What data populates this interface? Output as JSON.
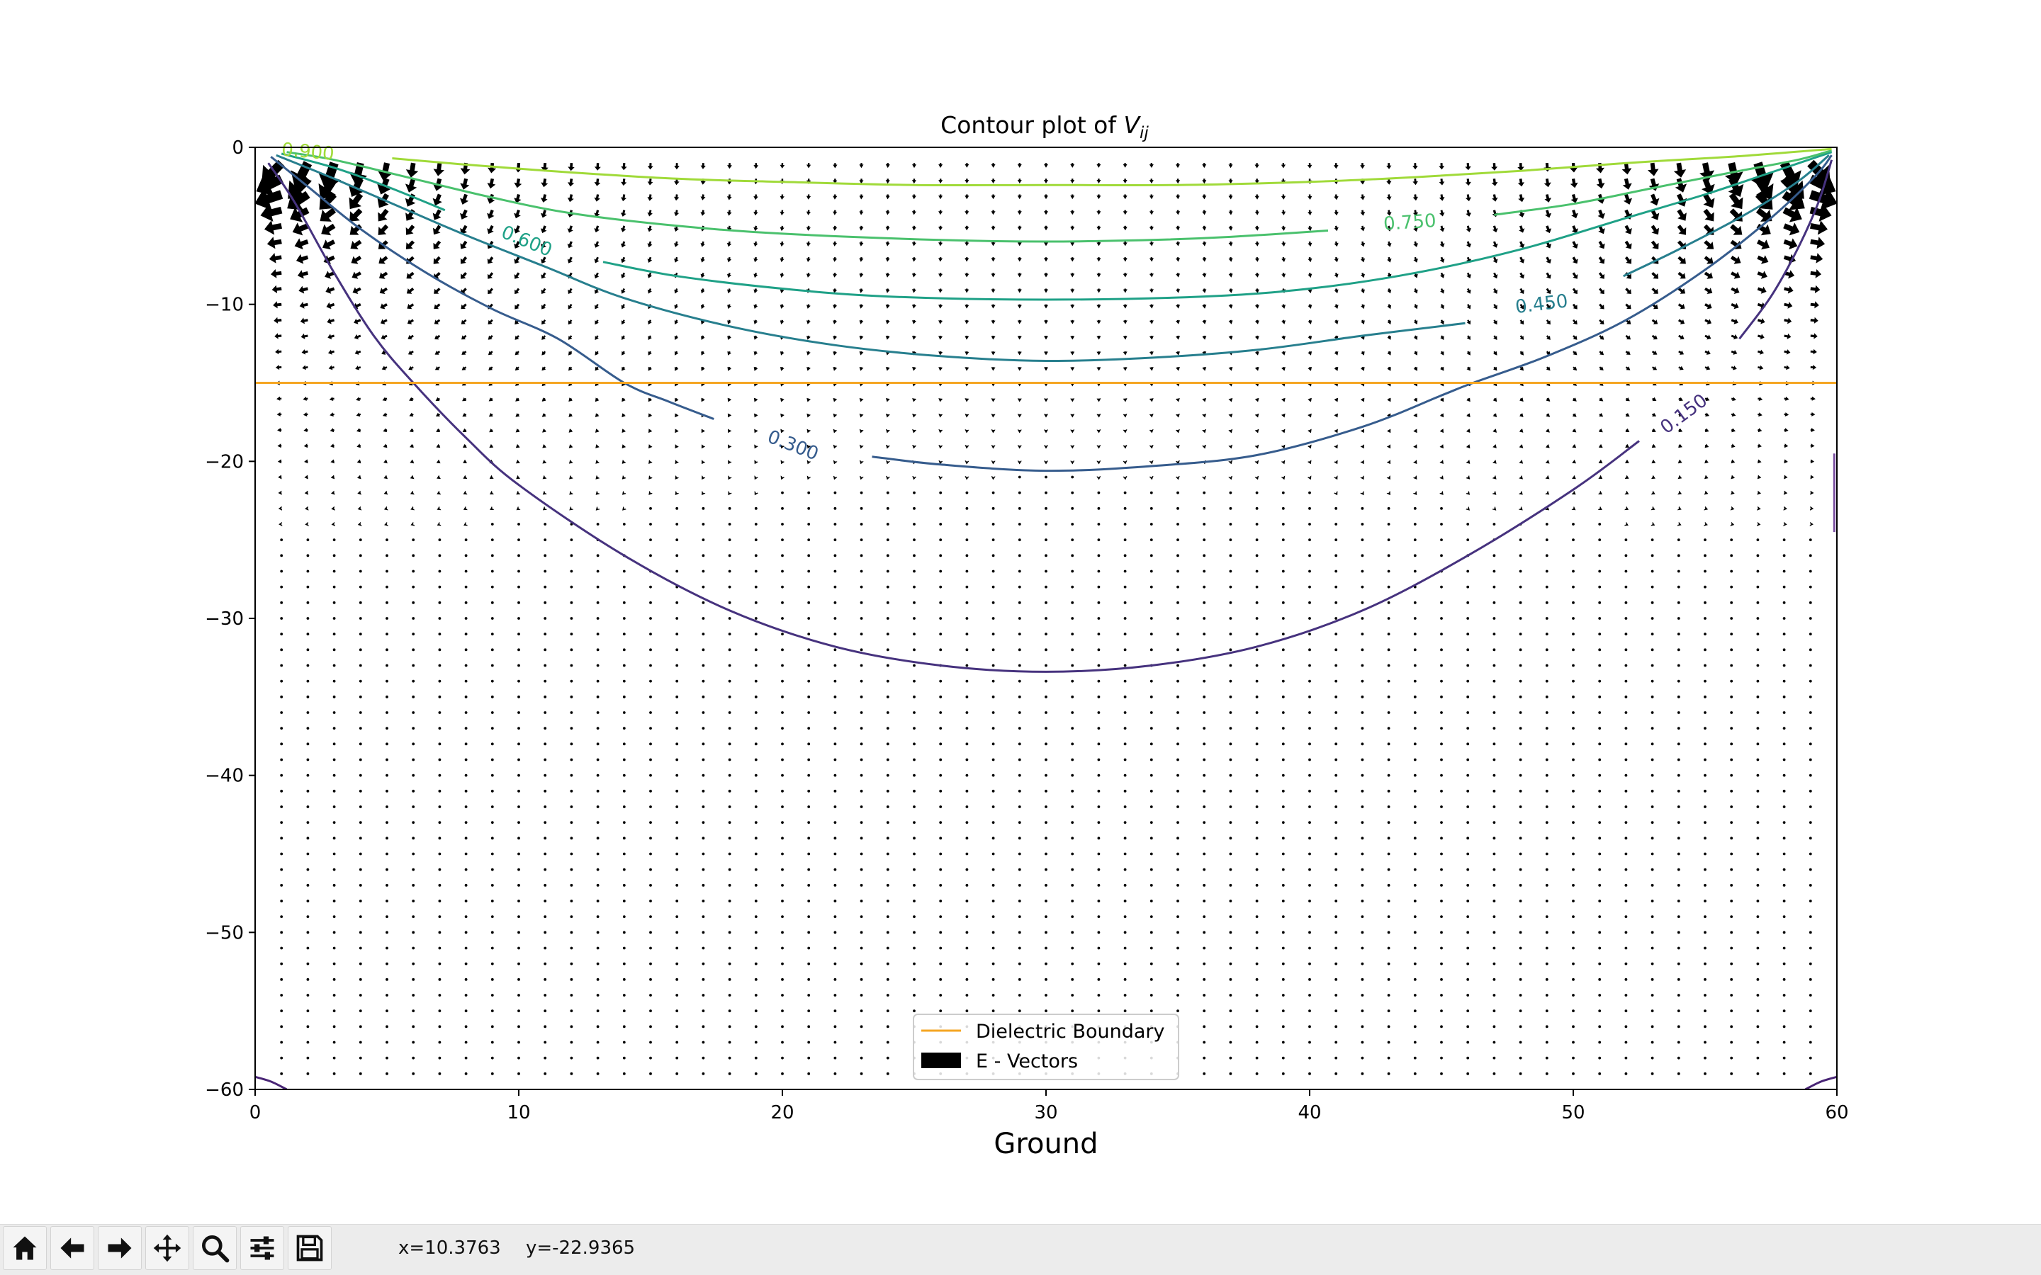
{
  "chart_data": {
    "type": "contour",
    "title_main": "Contour plot of ",
    "title_symbol": "V",
    "title_subscript": "ij",
    "xlabel": "Ground",
    "ylabel": "",
    "xlim": [
      0,
      60
    ],
    "ylim": [
      -60,
      0
    ],
    "x_ticks": [
      0,
      10,
      20,
      30,
      40,
      50,
      60
    ],
    "y_ticks": [
      0,
      -10,
      -20,
      -30,
      -40,
      -50,
      -60
    ],
    "x_tick_labels": [
      "0",
      "10",
      "20",
      "30",
      "40",
      "50",
      "60"
    ],
    "y_tick_labels": [
      "0",
      "−10",
      "−20",
      "−30",
      "−40",
      "−50",
      "−60"
    ],
    "grid": false,
    "legend_position": "lower center",
    "legend": [
      {
        "label": "Dielectric Boundary",
        "kind": "line",
        "color": "#f5a623"
      },
      {
        "label": "E - Vectors",
        "kind": "patch",
        "color": "#000000"
      }
    ],
    "dielectric_boundary_y": -15,
    "contour_levels": [
      {
        "level": 0.15,
        "color": "#46327e",
        "label": "0.150",
        "label_at": [
          54.2,
          -17.0
        ],
        "points": [
          [
            0.5,
            -1.0
          ],
          [
            1.5,
            -3.5
          ],
          [
            3.0,
            -8.0
          ],
          [
            4.5,
            -12.0
          ],
          [
            6,
            -15
          ],
          [
            8,
            -18.5
          ],
          [
            10,
            -21.5
          ],
          [
            14,
            -26.0
          ],
          [
            18,
            -29.5
          ],
          [
            22,
            -31.8
          ],
          [
            26,
            -33.0
          ],
          [
            30,
            -33.4
          ],
          [
            34,
            -33.0
          ],
          [
            38,
            -31.8
          ],
          [
            42,
            -29.5
          ],
          [
            46,
            -26.0
          ],
          [
            50,
            -21.8
          ],
          [
            52.5,
            -18.7
          ]
        ]
      },
      {
        "level": 0.15,
        "color": "#46327e",
        "label": "",
        "points": [
          [
            56.3,
            -12.2
          ],
          [
            57.5,
            -9.5
          ],
          [
            58.5,
            -6.5
          ],
          [
            59.3,
            -3.5
          ],
          [
            59.8,
            -0.8
          ]
        ]
      },
      {
        "level": 0.3,
        "color": "#365c8d",
        "label": "0.300",
        "label_at": [
          20.4,
          -19.0
        ],
        "points": [
          [
            0.6,
            -0.6
          ],
          [
            2.0,
            -2.5
          ],
          [
            4.0,
            -5.2
          ],
          [
            6.5,
            -8.0
          ],
          [
            9,
            -10.3
          ],
          [
            11.5,
            -12.2
          ],
          [
            14,
            -15.0
          ],
          [
            15.7,
            -16.2
          ],
          [
            17.4,
            -17.3
          ]
        ]
      },
      {
        "level": 0.3,
        "color": "#365c8d",
        "label": "",
        "points": [
          [
            23.4,
            -19.7
          ],
          [
            26,
            -20.2
          ],
          [
            30,
            -20.6
          ],
          [
            34,
            -20.3
          ],
          [
            38,
            -19.6
          ],
          [
            42,
            -17.8
          ],
          [
            45,
            -15.8
          ],
          [
            46.2,
            -15.0
          ],
          [
            49,
            -13.3
          ],
          [
            52,
            -11.0
          ],
          [
            55,
            -7.8
          ],
          [
            57.5,
            -4.5
          ],
          [
            59.2,
            -1.8
          ],
          [
            59.8,
            -0.5
          ]
        ]
      },
      {
        "level": 0.45,
        "color": "#277f8e",
        "label": "0.450",
        "label_at": [
          48.8,
          -10.0
        ],
        "points": [
          [
            0.8,
            -0.5
          ],
          [
            3,
            -2.0
          ],
          [
            5.5,
            -3.8
          ],
          [
            8,
            -5.6
          ],
          [
            11,
            -7.6
          ],
          [
            14,
            -9.6
          ],
          [
            18,
            -11.4
          ],
          [
            22,
            -12.6
          ],
          [
            26,
            -13.3
          ],
          [
            30,
            -13.6
          ],
          [
            34,
            -13.4
          ],
          [
            38,
            -12.9
          ],
          [
            42,
            -12.0
          ],
          [
            45.9,
            -11.2
          ]
        ]
      },
      {
        "level": 0.45,
        "color": "#277f8e",
        "label": "",
        "points": [
          [
            51.9,
            -8.2
          ],
          [
            54,
            -6.5
          ],
          [
            56.5,
            -4.3
          ],
          [
            58.5,
            -2.2
          ],
          [
            59.7,
            -0.5
          ]
        ]
      },
      {
        "level": 0.6,
        "color": "#1fa187",
        "label": "0.600",
        "label_at": [
          10.3,
          -6.0
        ],
        "points": [
          [
            1.0,
            -0.4
          ],
          [
            3,
            -1.3
          ],
          [
            5,
            -2.5
          ],
          [
            7.2,
            -4.0
          ]
        ]
      },
      {
        "level": 0.6,
        "color": "#1fa187",
        "label": "",
        "points": [
          [
            13.2,
            -7.3
          ],
          [
            16,
            -8.2
          ],
          [
            20,
            -9.0
          ],
          [
            24,
            -9.5
          ],
          [
            30,
            -9.7
          ],
          [
            36,
            -9.5
          ],
          [
            40,
            -9.0
          ],
          [
            44,
            -8.0
          ],
          [
            48,
            -6.5
          ],
          [
            52,
            -4.5
          ],
          [
            55,
            -3.0
          ],
          [
            57.5,
            -1.6
          ],
          [
            59.8,
            -0.3
          ]
        ]
      },
      {
        "level": 0.75,
        "color": "#4ac16d",
        "label": "0.750",
        "label_at": [
          43.8,
          -4.8
        ],
        "points": [
          [
            1.2,
            -0.3
          ],
          [
            3,
            -0.8
          ],
          [
            6,
            -2.0
          ],
          [
            9,
            -3.2
          ],
          [
            12,
            -4.2
          ],
          [
            16,
            -5.0
          ],
          [
            20,
            -5.5
          ],
          [
            26,
            -5.9
          ],
          [
            30,
            -6.0
          ],
          [
            34,
            -5.9
          ],
          [
            37,
            -5.7
          ],
          [
            40.7,
            -5.3
          ]
        ]
      },
      {
        "level": 0.75,
        "color": "#4ac16d",
        "label": "",
        "points": [
          [
            47,
            -4.3
          ],
          [
            50,
            -3.6
          ],
          [
            53,
            -2.6
          ],
          [
            56,
            -1.6
          ],
          [
            58.5,
            -0.8
          ],
          [
            59.8,
            -0.2
          ]
        ]
      },
      {
        "level": 0.9,
        "color": "#a0da39",
        "label": "0.900",
        "label_at": [
          2.0,
          -0.3
        ],
        "points": [
          [
            5.2,
            -0.7
          ],
          [
            8,
            -1.1
          ],
          [
            12,
            -1.6
          ],
          [
            16,
            -2.0
          ],
          [
            20,
            -2.2
          ],
          [
            25,
            -2.4
          ],
          [
            30,
            -2.4
          ],
          [
            35,
            -2.4
          ],
          [
            40,
            -2.2
          ],
          [
            44,
            -1.9
          ],
          [
            48,
            -1.5
          ],
          [
            52,
            -1.0
          ],
          [
            56,
            -0.6
          ],
          [
            59.8,
            -0.1
          ]
        ]
      }
    ],
    "corner_contours": [
      {
        "color": "#482475",
        "points": [
          [
            0,
            -59.2
          ],
          [
            0.6,
            -59.5
          ],
          [
            1.2,
            -60
          ]
        ]
      },
      {
        "color": "#482475",
        "points": [
          [
            58.8,
            -60
          ],
          [
            59.4,
            -59.5
          ],
          [
            60,
            -59.2
          ]
        ]
      },
      {
        "color": "#7a4fa0",
        "points": [
          [
            59.9,
            -19.5
          ],
          [
            59.9,
            -22.0
          ],
          [
            59.9,
            -24.5
          ]
        ]
      }
    ],
    "field_vectors": {
      "description": "E-field quiver, field of a strip at the top with grounded sides",
      "x_start": 1,
      "x_step": 1,
      "x_end": 59,
      "y_start": -1,
      "y_step": -1,
      "y_end": -59
    }
  },
  "toolbar": {
    "buttons": [
      {
        "name": "home-button",
        "icon": "home-icon"
      },
      {
        "name": "back-button",
        "icon": "arrow-left-icon"
      },
      {
        "name": "forward-button",
        "icon": "arrow-right-icon"
      },
      {
        "name": "pan-button",
        "icon": "move-icon"
      },
      {
        "name": "zoom-button",
        "icon": "magnifier-icon"
      },
      {
        "name": "configure-subplots-button",
        "icon": "sliders-icon"
      },
      {
        "name": "save-button",
        "icon": "floppy-disk-icon"
      }
    ],
    "x_readout": "x=10.3763",
    "y_readout": "y=-22.9365"
  }
}
